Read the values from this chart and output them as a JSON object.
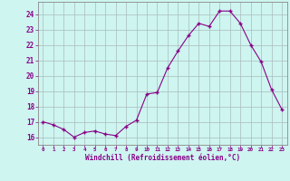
{
  "x": [
    0,
    1,
    2,
    3,
    4,
    5,
    6,
    7,
    8,
    9,
    10,
    11,
    12,
    13,
    14,
    15,
    16,
    17,
    18,
    19,
    20,
    21,
    22,
    23
  ],
  "y": [
    17.0,
    16.8,
    16.5,
    16.0,
    16.3,
    16.4,
    16.2,
    16.1,
    16.7,
    17.1,
    18.8,
    18.9,
    20.5,
    21.6,
    22.6,
    23.4,
    23.2,
    24.2,
    24.2,
    23.4,
    22.0,
    20.9,
    19.1,
    17.8
  ],
  "line_color": "#880088",
  "marker_color": "#880088",
  "bg_color": "#cef5f0",
  "grid_color": "#aabbbb",
  "xlabel": "Windchill (Refroidissement éolien,°C)",
  "xlabel_color": "#880088",
  "tick_color": "#880088",
  "ylim": [
    15.5,
    24.8
  ],
  "xlim": [
    -0.5,
    23.5
  ],
  "yticks": [
    16,
    17,
    18,
    19,
    20,
    21,
    22,
    23,
    24
  ],
  "xticks": [
    0,
    1,
    2,
    3,
    4,
    5,
    6,
    7,
    8,
    9,
    10,
    11,
    12,
    13,
    14,
    15,
    16,
    17,
    18,
    19,
    20,
    21,
    22,
    23
  ],
  "xtick_labels": [
    "0",
    "1",
    "2",
    "3",
    "4",
    "5",
    "6",
    "7",
    "8",
    "9",
    "10",
    "11",
    "12",
    "13",
    "14",
    "15",
    "16",
    "17",
    "18",
    "19",
    "20",
    "21",
    "22",
    "23"
  ]
}
